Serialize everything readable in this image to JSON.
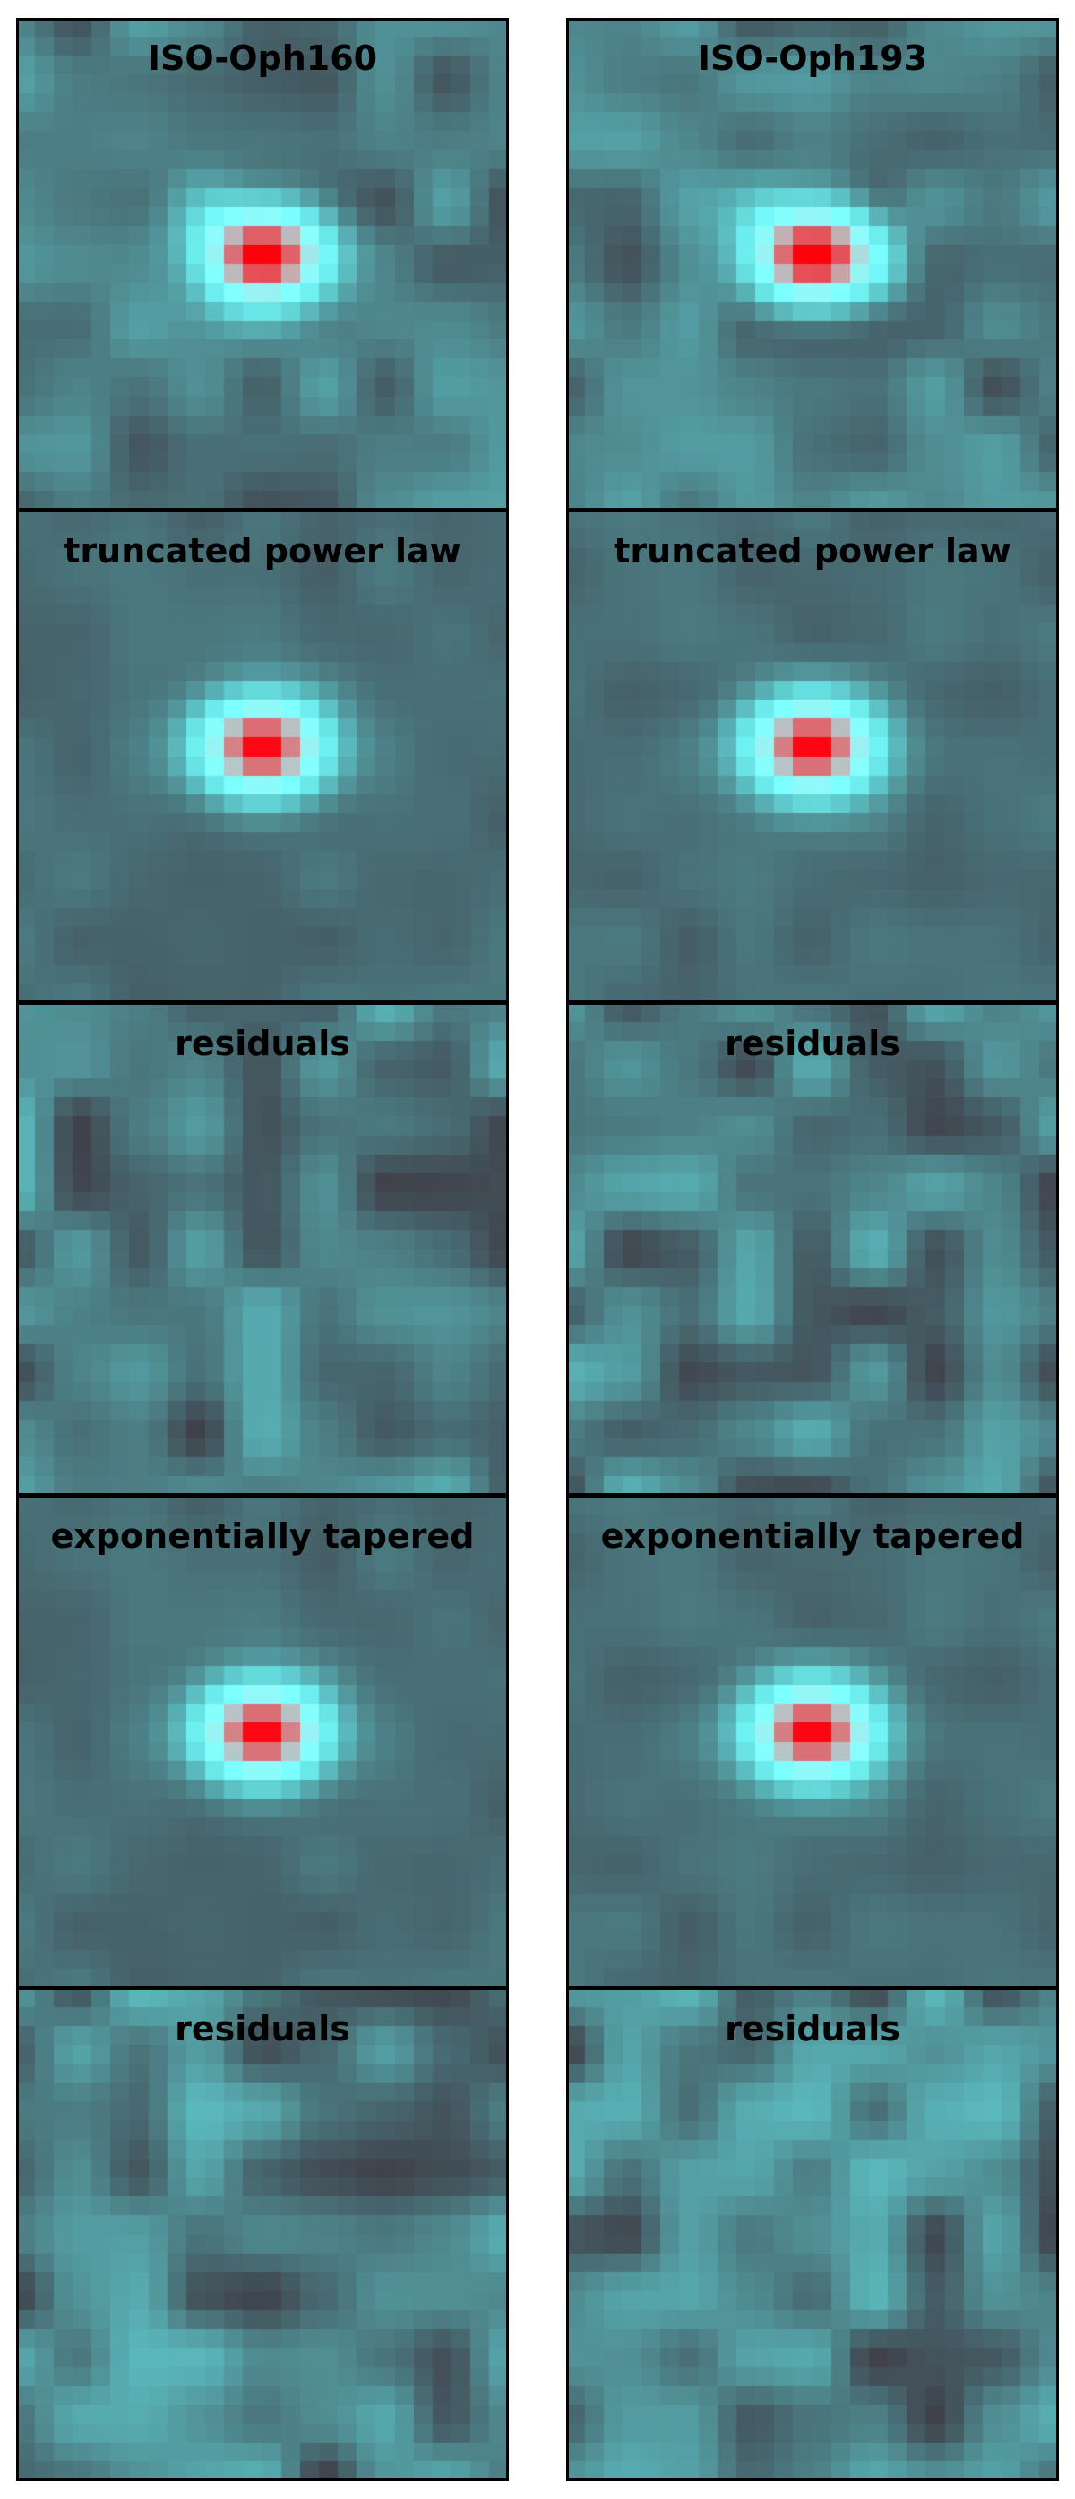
{
  "chart_data": {
    "type": "heatmap",
    "colormap": "rainbow",
    "grid": false,
    "columns": [
      {
        "source": "ISO-Oph160",
        "panels": [
          {
            "title": "ISO-Oph160",
            "kind": "observed"
          },
          {
            "title": "truncated power law",
            "kind": "model"
          },
          {
            "title": "residuals",
            "kind": "residual"
          },
          {
            "title": "exponentially tapered",
            "kind": "model"
          },
          {
            "title": "residuals",
            "kind": "residual"
          }
        ]
      },
      {
        "source": "ISO-Oph193",
        "panels": [
          {
            "title": "ISO-Oph193",
            "kind": "observed"
          },
          {
            "title": "truncated power law",
            "kind": "model"
          },
          {
            "title": "residuals",
            "kind": "residual"
          },
          {
            "title": "exponentially tapered",
            "kind": "model"
          },
          {
            "title": "residuals",
            "kind": "residual"
          }
        ]
      }
    ]
  }
}
